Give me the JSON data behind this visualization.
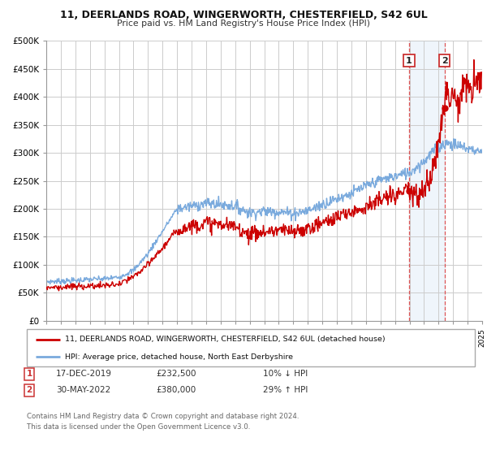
{
  "title": "11, DEERLANDS ROAD, WINGERWORTH, CHESTERFIELD, S42 6UL",
  "subtitle": "Price paid vs. HM Land Registry's House Price Index (HPI)",
  "background_color": "#ffffff",
  "plot_background": "#ffffff",
  "grid_color": "#cccccc",
  "red_line_color": "#cc0000",
  "blue_line_color": "#7aaadd",
  "highlight_bg_color": "#ddeeff",
  "point1_date": 2019.97,
  "point1_value": 232500,
  "point2_date": 2022.41,
  "point2_value": 380000,
  "legend_entries": [
    "11, DEERLANDS ROAD, WINGERWORTH, CHESTERFIELD, S42 6UL (detached house)",
    "HPI: Average price, detached house, North East Derbyshire"
  ],
  "table_row1": [
    "1",
    "17-DEC-2019",
    "£232,500",
    "10% ↓ HPI"
  ],
  "table_row2": [
    "2",
    "30-MAY-2022",
    "£380,000",
    "29% ↑ HPI"
  ],
  "footer": "Contains HM Land Registry data © Crown copyright and database right 2024.\nThis data is licensed under the Open Government Licence v3.0.",
  "xmin": 1995,
  "xmax": 2025,
  "ymin": 0,
  "ymax": 500000,
  "yticks": [
    0,
    50000,
    100000,
    150000,
    200000,
    250000,
    300000,
    350000,
    400000,
    450000,
    500000
  ],
  "ytick_labels": [
    "£0",
    "£50K",
    "£100K",
    "£150K",
    "£200K",
    "£250K",
    "£300K",
    "£350K",
    "£400K",
    "£450K",
    "£500K"
  ]
}
